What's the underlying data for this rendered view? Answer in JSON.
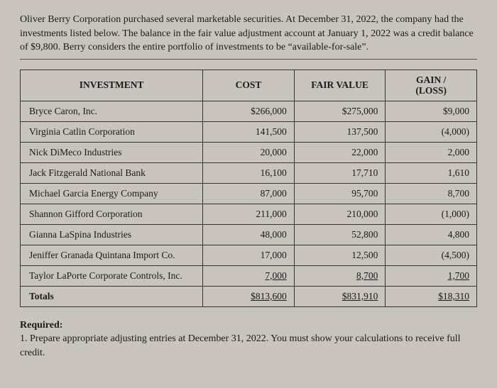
{
  "intro": "Oliver Berry Corporation purchased several marketable securities. At December 31, 2022, the company had the investments listed below. The balance in the fair value adjustment account at January 1, 2022 was a credit balance of $9,800. Berry considers the entire portfolio of investments to be “available-for-sale”.",
  "table": {
    "headers": {
      "investment": "INVESTMENT",
      "cost": "COST",
      "fair_value": "FAIR VALUE",
      "gain_loss_l1": "GAIN /",
      "gain_loss_l2": "(LOSS)"
    },
    "rows": [
      {
        "name": "Bryce Caron, Inc.",
        "cost": "$266,000",
        "fair": "$275,000",
        "gl": "$9,000"
      },
      {
        "name": "Virginia Catlin Corporation",
        "cost": "141,500",
        "fair": "137,500",
        "gl": "(4,000)"
      },
      {
        "name": "Nick DiMeco Industries",
        "cost": "20,000",
        "fair": "22,000",
        "gl": "2,000"
      },
      {
        "name": "Jack Fitzgerald National Bank",
        "cost": "16,100",
        "fair": "17,710",
        "gl": "1,610"
      },
      {
        "name": "Michael Garcia Energy Company",
        "cost": "87,000",
        "fair": "95,700",
        "gl": "8,700"
      },
      {
        "name": "Shannon Gifford Corporation",
        "cost": "211,000",
        "fair": "210,000",
        "gl": "(1,000)"
      },
      {
        "name": "Gianna LaSpina Industries",
        "cost": "48,000",
        "fair": "52,800",
        "gl": "4,800"
      },
      {
        "name": "Jeniffer Granada Quintana Import Co.",
        "cost": "17,000",
        "fair": "12,500",
        "gl": "(4,500)"
      },
      {
        "name": "Taylor LaPorte Corporate Controls, Inc.",
        "cost": "7,000",
        "fair": "8,700",
        "gl": "1,700"
      }
    ],
    "totals": {
      "label": "Totals",
      "cost": "$813,600",
      "fair": "$831,910",
      "gl": "$18,310"
    }
  },
  "required": {
    "header": "Required:",
    "item1": "1. Prepare appropriate adjusting entries at December 31, 2022. You must show your calculations to receive full credit."
  },
  "colors": {
    "background": "#c8c4bd",
    "text": "#1a1a1a",
    "border": "#333333"
  }
}
